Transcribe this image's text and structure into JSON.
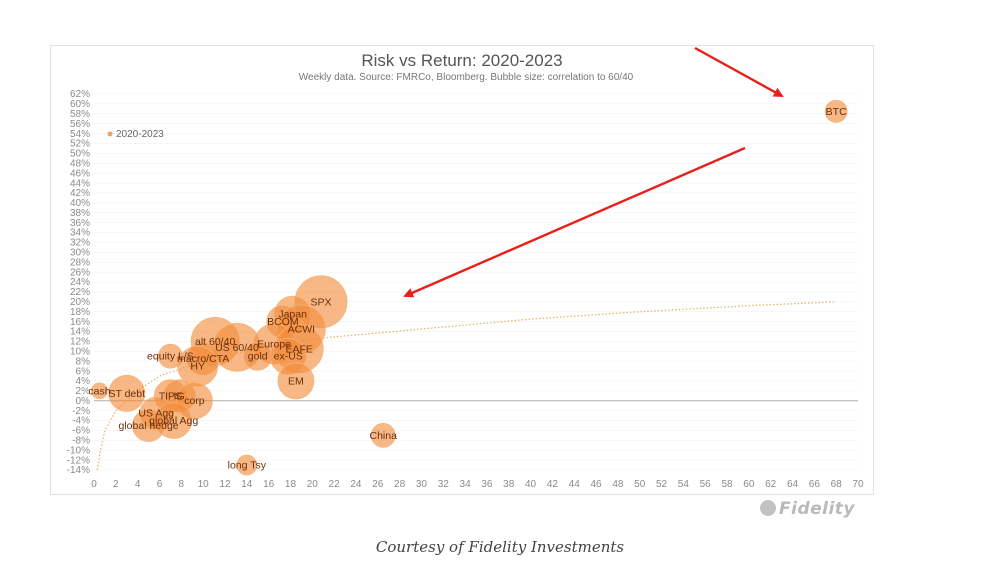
{
  "chart_data": {
    "type": "scatter",
    "variant": "bubble",
    "title": "Risk vs Return: 2020-2023",
    "subtitle": "Weekly data.  Source: FMRCo, Bloomberg.  Bubble size: correlation to 60/40",
    "xlim": [
      0,
      70
    ],
    "ylim": [
      -14,
      62
    ],
    "x_ticks": [
      "0",
      "2",
      "4",
      "6",
      "8",
      "10",
      "12",
      "14",
      "16",
      "18",
      "20",
      "22",
      "24",
      "26",
      "28",
      "30",
      "32",
      "34",
      "36",
      "38",
      "40",
      "42",
      "44",
      "46",
      "48",
      "50",
      "52",
      "54",
      "56",
      "58",
      "60",
      "62",
      "64",
      "66",
      "68",
      "70"
    ],
    "y_ticks": [
      "62%",
      "60%",
      "58%",
      "56%",
      "54%",
      "52%",
      "50%",
      "48%",
      "46%",
      "44%",
      "42%",
      "40%",
      "38%",
      "36%",
      "34%",
      "32%",
      "30%",
      "28%",
      "26%",
      "24%",
      "22%",
      "20%",
      "18%",
      "16%",
      "14%",
      "12%",
      "10%",
      "8%",
      "6%",
      "4%",
      "2%",
      "0%",
      "-2%",
      "-4%",
      "-6%",
      "-8%",
      "-10%",
      "-12%",
      "-14%"
    ],
    "grid": true,
    "legend_position": "top-left",
    "series": [
      {
        "name": "2020-2023",
        "color": "#f28c3c",
        "points": [
          {
            "label": "BTC",
            "x": 68,
            "y": 58.5,
            "size": 0.25
          },
          {
            "label": "SPX",
            "x": 20.8,
            "y": 20,
            "size": 1.0
          },
          {
            "label": "Japan",
            "x": 18.2,
            "y": 17.5,
            "size": 0.6
          },
          {
            "label": "BCOM",
            "x": 17.3,
            "y": 16,
            "size": 0.5
          },
          {
            "label": "ACWI",
            "x": 19,
            "y": 14.5,
            "size": 0.9
          },
          {
            "label": "alt 60/40",
            "x": 11.1,
            "y": 12,
            "size": 0.9
          },
          {
            "label": "Europe",
            "x": 16.5,
            "y": 11.5,
            "size": 0.7
          },
          {
            "label": "US 60/40",
            "x": 13.1,
            "y": 10.8,
            "size": 0.9
          },
          {
            "label": "EAFE",
            "x": 18.8,
            "y": 10.5,
            "size": 0.9
          },
          {
            "label": "gold",
            "x": 15,
            "y": 9,
            "size": 0.4
          },
          {
            "label": "ex-US",
            "x": 17.8,
            "y": 9,
            "size": 0.6
          },
          {
            "label": "equity L/S",
            "x": 7,
            "y": 9,
            "size": 0.3
          },
          {
            "label": "macro/CTA",
            "x": 10,
            "y": 8.5,
            "size": 0.5
          },
          {
            "label": "HY",
            "x": 9.5,
            "y": 7,
            "size": 0.7
          },
          {
            "label": "EM",
            "x": 18.5,
            "y": 4,
            "size": 0.6
          },
          {
            "label": "cash",
            "x": 0.5,
            "y": 2,
            "size": 0.1
          },
          {
            "label": "ST debt",
            "x": 3,
            "y": 1.5,
            "size": 0.6
          },
          {
            "label": "TIPS",
            "x": 7,
            "y": 1,
            "size": 0.5
          },
          {
            "label": "IG",
            "x": 7.8,
            "y": 1,
            "size": 0.5
          },
          {
            "label": "corp",
            "x": 9.2,
            "y": 0,
            "size": 0.6
          },
          {
            "label": "US Agg",
            "x": 5.7,
            "y": -2.5,
            "size": 0.5
          },
          {
            "label": "global Agg",
            "x": 7.3,
            "y": -4,
            "size": 0.6
          },
          {
            "label": "global hedge",
            "x": 5,
            "y": -5,
            "size": 0.5
          },
          {
            "label": "China",
            "x": 26.5,
            "y": -7,
            "size": 0.3
          },
          {
            "label": "long Tsy",
            "x": 14,
            "y": -13,
            "size": 0.2
          }
        ]
      }
    ],
    "trend_line": {
      "style": "dotted",
      "color": "#e8b46a",
      "points": [
        [
          0.3,
          -14
        ],
        [
          0.6,
          -10
        ],
        [
          1,
          -6
        ],
        [
          2,
          -2
        ],
        [
          4,
          2
        ],
        [
          6,
          5
        ],
        [
          10,
          8
        ],
        [
          16,
          11
        ],
        [
          20,
          12.5
        ],
        [
          30,
          14.5
        ],
        [
          40,
          16.5
        ],
        [
          50,
          18
        ],
        [
          60,
          19.2
        ],
        [
          68,
          20
        ]
      ]
    }
  },
  "annotations": {
    "arrow_color": "#e8201c"
  },
  "logo_text": "Fidelity",
  "caption": "Courtesy of Fidelity Investments"
}
